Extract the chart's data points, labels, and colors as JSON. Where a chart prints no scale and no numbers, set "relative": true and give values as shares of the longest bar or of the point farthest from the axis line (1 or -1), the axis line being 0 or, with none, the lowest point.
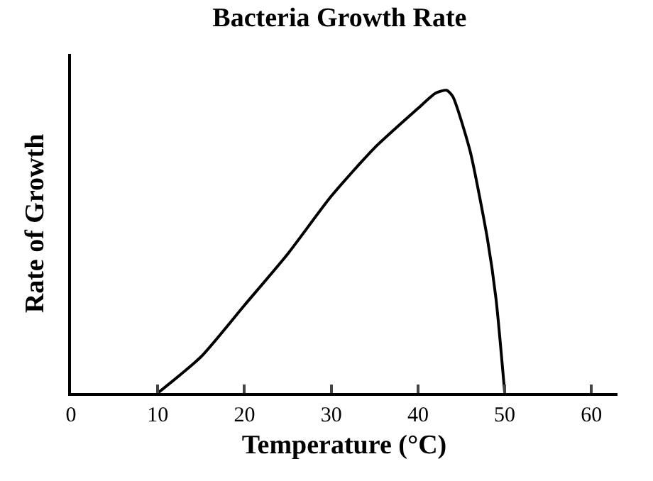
{
  "chart_data": {
    "type": "line",
    "title": "Bacteria Growth Rate",
    "xlabel": "Temperature (°C)",
    "ylabel": "Rate of Growth",
    "relative": true,
    "x": [
      10,
      15,
      20,
      25,
      30,
      35,
      40,
      42,
      43.3,
      44,
      46,
      48,
      49,
      50
    ],
    "series": [
      {
        "color": "#000000",
        "values": [
          0,
          0.12,
          0.29,
          0.46,
          0.65,
          0.81,
          0.94,
          0.99,
          1,
          0.98,
          0.8,
          0.51,
          0.31,
          0
        ]
      }
    ],
    "xlim": [
      0,
      63
    ],
    "xticks": [
      0,
      10,
      20,
      30,
      40,
      50,
      60
    ],
    "marker": "none",
    "line_style": "solid"
  }
}
